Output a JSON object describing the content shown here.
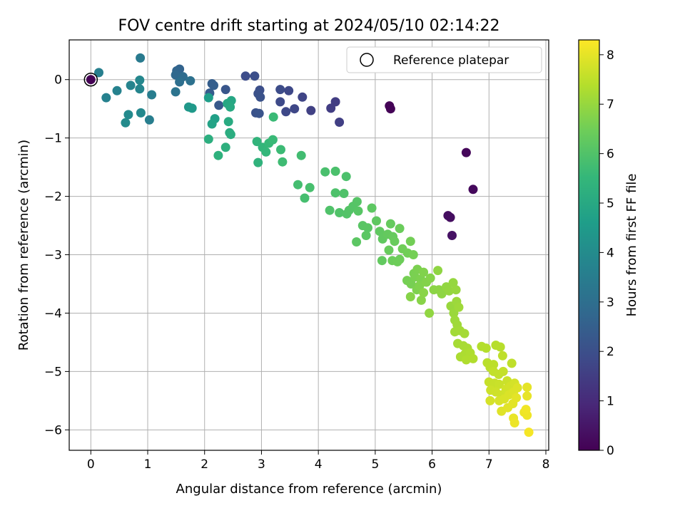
{
  "chart_data": {
    "type": "scatter",
    "title": "FOV centre drift starting at 2024/05/10 02:14:22",
    "xlabel": "Angular distance from reference (arcmin)",
    "ylabel": "Rotation from reference (arcmin)",
    "xlim": [
      -0.38,
      8.05
    ],
    "ylim": [
      -6.35,
      0.68
    ],
    "xticks": [
      "0",
      "1",
      "2",
      "3",
      "4",
      "5",
      "6",
      "7",
      "8"
    ],
    "yticks": [
      "0",
      "−1",
      "−2",
      "−3",
      "−4",
      "−5",
      "−6"
    ],
    "grid": true,
    "legend": {
      "position": "top-right",
      "label": "Reference platepar",
      "marker": "open-circle"
    },
    "colorbar": {
      "label": "Hours from first FF file",
      "range": [
        0,
        8.3
      ],
      "ticks": [
        "0",
        "1",
        "2",
        "3",
        "4",
        "5",
        "6",
        "7",
        "8"
      ],
      "colormap": "viridis"
    },
    "reference_point": {
      "x": 0,
      "y": 0
    },
    "points": [
      [
        0.0,
        0.0,
        0.0
      ],
      [
        5.25,
        -0.45,
        0.05
      ],
      [
        5.27,
        -0.5,
        0.05
      ],
      [
        6.6,
        -1.25,
        0.15
      ],
      [
        6.72,
        -1.88,
        0.2
      ],
      [
        6.28,
        -2.33,
        0.3
      ],
      [
        6.32,
        -2.36,
        0.3
      ],
      [
        6.35,
        -2.67,
        0.4
      ],
      [
        4.3,
        -0.38,
        1.5
      ],
      [
        4.22,
        -0.49,
        1.5
      ],
      [
        4.37,
        -0.73,
        1.55
      ],
      [
        3.87,
        -0.53,
        1.6
      ],
      [
        3.72,
        -0.3,
        1.7
      ],
      [
        3.58,
        -0.5,
        1.75
      ],
      [
        3.48,
        -0.19,
        1.8
      ],
      [
        3.43,
        -0.55,
        1.8
      ],
      [
        3.33,
        -0.38,
        1.85
      ],
      [
        3.33,
        -0.17,
        1.9
      ],
      [
        2.72,
        0.06,
        1.95
      ],
      [
        2.88,
        0.06,
        2.0
      ],
      [
        2.97,
        -0.18,
        2.0
      ],
      [
        2.94,
        -0.24,
        2.05
      ],
      [
        2.98,
        -0.3,
        2.1
      ],
      [
        2.9,
        -0.57,
        2.1
      ],
      [
        2.96,
        -0.58,
        2.15
      ],
      [
        2.37,
        -0.17,
        2.2
      ],
      [
        2.25,
        -0.44,
        2.3
      ],
      [
        2.09,
        -0.23,
        2.4
      ],
      [
        2.13,
        -0.07,
        2.45
      ],
      [
        2.16,
        -0.1,
        2.5
      ],
      [
        1.56,
        0.18,
        2.6
      ],
      [
        1.51,
        0.15,
        2.7
      ],
      [
        1.49,
        0.08,
        2.8
      ],
      [
        1.62,
        0.05,
        2.9
      ],
      [
        1.56,
        -0.04,
        3.0
      ],
      [
        1.75,
        -0.02,
        3.1
      ],
      [
        1.49,
        -0.21,
        3.2
      ],
      [
        0.87,
        0.37,
        3.4
      ],
      [
        1.07,
        -0.26,
        3.5
      ],
      [
        1.03,
        -0.69,
        3.55
      ],
      [
        0.14,
        0.12,
        3.6
      ],
      [
        0.27,
        -0.31,
        3.65
      ],
      [
        0.46,
        -0.19,
        3.7
      ],
      [
        0.7,
        -0.1,
        3.75
      ],
      [
        0.86,
        -0.16,
        3.8
      ],
      [
        0.86,
        -0.01,
        3.85
      ],
      [
        0.88,
        -0.57,
        3.9
      ],
      [
        0.66,
        -0.6,
        3.95
      ],
      [
        0.61,
        -0.74,
        4.0
      ],
      [
        1.72,
        -0.47,
        4.4
      ],
      [
        1.78,
        -0.49,
        4.45
      ],
      [
        2.07,
        -0.31,
        4.6
      ],
      [
        2.18,
        -0.67,
        4.7
      ],
      [
        2.13,
        -0.76,
        4.8
      ],
      [
        2.47,
        -0.36,
        4.9
      ],
      [
        2.4,
        -0.41,
        4.95
      ],
      [
        2.45,
        -0.47,
        5.0
      ],
      [
        2.42,
        -0.72,
        5.05
      ],
      [
        2.44,
        -0.91,
        5.1
      ],
      [
        2.46,
        -0.94,
        5.15
      ],
      [
        2.07,
        -1.02,
        5.2
      ],
      [
        2.37,
        -1.16,
        5.25
      ],
      [
        2.24,
        -1.3,
        5.3
      ],
      [
        2.94,
        -1.42,
        5.35
      ],
      [
        2.92,
        -1.06,
        5.4
      ],
      [
        3.02,
        -1.16,
        5.45
      ],
      [
        3.08,
        -1.24,
        5.5
      ],
      [
        3.13,
        -1.09,
        5.55
      ],
      [
        3.2,
        -1.03,
        5.6
      ],
      [
        3.21,
        -0.64,
        5.62
      ],
      [
        3.34,
        -1.2,
        5.65
      ],
      [
        3.37,
        -1.41,
        5.7
      ],
      [
        3.7,
        -1.3,
        5.75
      ],
      [
        3.64,
        -1.8,
        5.8
      ],
      [
        3.76,
        -2.03,
        5.82
      ],
      [
        3.85,
        -1.85,
        5.85
      ],
      [
        4.12,
        -1.58,
        5.88
      ],
      [
        4.3,
        -1.57,
        5.9
      ],
      [
        4.49,
        -1.66,
        5.92
      ],
      [
        4.3,
        -1.94,
        5.94
      ],
      [
        4.45,
        -1.95,
        5.96
      ],
      [
        4.2,
        -2.24,
        5.98
      ],
      [
        4.37,
        -2.28,
        6.0
      ],
      [
        4.5,
        -2.3,
        6.02
      ],
      [
        4.54,
        -2.24,
        6.04
      ],
      [
        4.61,
        -2.17,
        6.06
      ],
      [
        4.68,
        -2.09,
        6.08
      ],
      [
        4.7,
        -2.25,
        6.1
      ],
      [
        4.78,
        -2.5,
        6.12
      ],
      [
        4.87,
        -2.54,
        6.14
      ],
      [
        4.84,
        -2.67,
        6.16
      ],
      [
        4.67,
        -2.78,
        6.18
      ],
      [
        4.94,
        -2.2,
        6.2
      ],
      [
        5.02,
        -2.42,
        6.22
      ],
      [
        5.08,
        -2.6,
        6.24
      ],
      [
        5.13,
        -2.73,
        6.26
      ],
      [
        5.12,
        -3.1,
        6.28
      ],
      [
        5.22,
        -2.65,
        6.3
      ],
      [
        5.27,
        -2.47,
        6.32
      ],
      [
        5.31,
        -2.69,
        6.34
      ],
      [
        5.24,
        -2.92,
        6.36
      ],
      [
        5.34,
        -2.77,
        6.38
      ],
      [
        5.43,
        -2.55,
        6.4
      ],
      [
        5.3,
        -3.1,
        6.42
      ],
      [
        5.43,
        -3.08,
        6.44
      ],
      [
        5.39,
        -3.12,
        6.46
      ],
      [
        5.48,
        -2.9,
        6.48
      ],
      [
        5.57,
        -2.97,
        6.5
      ],
      [
        5.62,
        -2.77,
        6.52
      ],
      [
        5.67,
        -3.0,
        6.54
      ],
      [
        5.56,
        -3.44,
        6.56
      ],
      [
        5.63,
        -3.5,
        6.58
      ],
      [
        5.68,
        -3.32,
        6.6
      ],
      [
        5.7,
        -3.38,
        6.62
      ],
      [
        5.74,
        -3.25,
        6.64
      ],
      [
        5.8,
        -3.42,
        6.66
      ],
      [
        5.73,
        -3.6,
        6.68
      ],
      [
        5.78,
        -3.53,
        6.7
      ],
      [
        5.85,
        -3.3,
        6.72
      ],
      [
        5.9,
        -3.47,
        6.74
      ],
      [
        5.97,
        -3.4,
        6.76
      ],
      [
        5.62,
        -3.72,
        6.78
      ],
      [
        5.81,
        -3.78,
        6.8
      ],
      [
        5.85,
        -3.65,
        6.82
      ],
      [
        6.03,
        -3.6,
        6.84
      ],
      [
        6.12,
        -3.6,
        6.86
      ],
      [
        6.17,
        -3.67,
        6.88
      ],
      [
        6.1,
        -3.27,
        6.9
      ],
      [
        5.95,
        -4.0,
        6.92
      ],
      [
        6.25,
        -3.55,
        6.94
      ],
      [
        6.3,
        -3.62,
        6.96
      ],
      [
        6.37,
        -3.48,
        6.98
      ],
      [
        6.42,
        -3.6,
        7.0
      ],
      [
        6.33,
        -3.88,
        7.02
      ],
      [
        6.38,
        -4.0,
        7.04
      ],
      [
        6.43,
        -3.8,
        7.06
      ],
      [
        6.4,
        -4.12,
        7.08
      ],
      [
        6.47,
        -3.9,
        7.1
      ],
      [
        6.44,
        -4.2,
        7.12
      ],
      [
        6.4,
        -4.32,
        7.14
      ],
      [
        6.49,
        -4.3,
        7.16
      ],
      [
        6.57,
        -4.35,
        7.18
      ],
      [
        6.45,
        -4.52,
        7.2
      ],
      [
        6.55,
        -4.56,
        7.22
      ],
      [
        6.62,
        -4.6,
        7.24
      ],
      [
        6.5,
        -4.75,
        7.26
      ],
      [
        6.58,
        -4.7,
        7.28
      ],
      [
        6.67,
        -4.68,
        7.3
      ],
      [
        6.6,
        -4.8,
        7.32
      ],
      [
        6.72,
        -4.78,
        7.34
      ],
      [
        6.87,
        -4.57,
        7.36
      ],
      [
        6.95,
        -4.6,
        7.38
      ],
      [
        7.12,
        -4.55,
        7.4
      ],
      [
        7.2,
        -4.58,
        7.42
      ],
      [
        6.97,
        -4.85,
        7.44
      ],
      [
        7.02,
        -4.93,
        7.46
      ],
      [
        7.08,
        -4.88,
        7.48
      ],
      [
        7.24,
        -4.73,
        7.5
      ],
      [
        7.4,
        -4.86,
        7.52
      ],
      [
        7.08,
        -5.0,
        7.54
      ],
      [
        7.17,
        -5.05,
        7.56
      ],
      [
        7.25,
        -5.0,
        7.58
      ],
      [
        7.0,
        -5.18,
        7.6
      ],
      [
        7.1,
        -5.2,
        7.62
      ],
      [
        7.18,
        -5.22,
        7.64
      ],
      [
        7.32,
        -5.16,
        7.66
      ],
      [
        7.03,
        -5.32,
        7.68
      ],
      [
        7.12,
        -5.35,
        7.7
      ],
      [
        7.22,
        -5.4,
        7.72
      ],
      [
        7.3,
        -5.3,
        7.74
      ],
      [
        7.38,
        -5.25,
        7.76
      ],
      [
        7.45,
        -5.2,
        7.78
      ],
      [
        7.02,
        -5.5,
        7.8
      ],
      [
        7.18,
        -5.5,
        7.82
      ],
      [
        7.27,
        -5.47,
        7.84
      ],
      [
        7.35,
        -5.4,
        7.86
      ],
      [
        7.43,
        -5.35,
        7.88
      ],
      [
        7.5,
        -5.28,
        7.9
      ],
      [
        7.22,
        -5.68,
        7.92
      ],
      [
        7.33,
        -5.62,
        7.94
      ],
      [
        7.42,
        -5.55,
        7.96
      ],
      [
        7.48,
        -5.45,
        7.98
      ],
      [
        7.67,
        -5.27,
        8.0
      ],
      [
        7.67,
        -5.42,
        8.02
      ],
      [
        7.43,
        -5.8,
        8.05
      ],
      [
        7.45,
        -5.88,
        8.08
      ],
      [
        7.62,
        -5.7,
        8.1
      ],
      [
        7.67,
        -5.75,
        8.12
      ],
      [
        7.65,
        -5.65,
        8.15
      ],
      [
        7.7,
        -6.04,
        8.2
      ]
    ]
  }
}
